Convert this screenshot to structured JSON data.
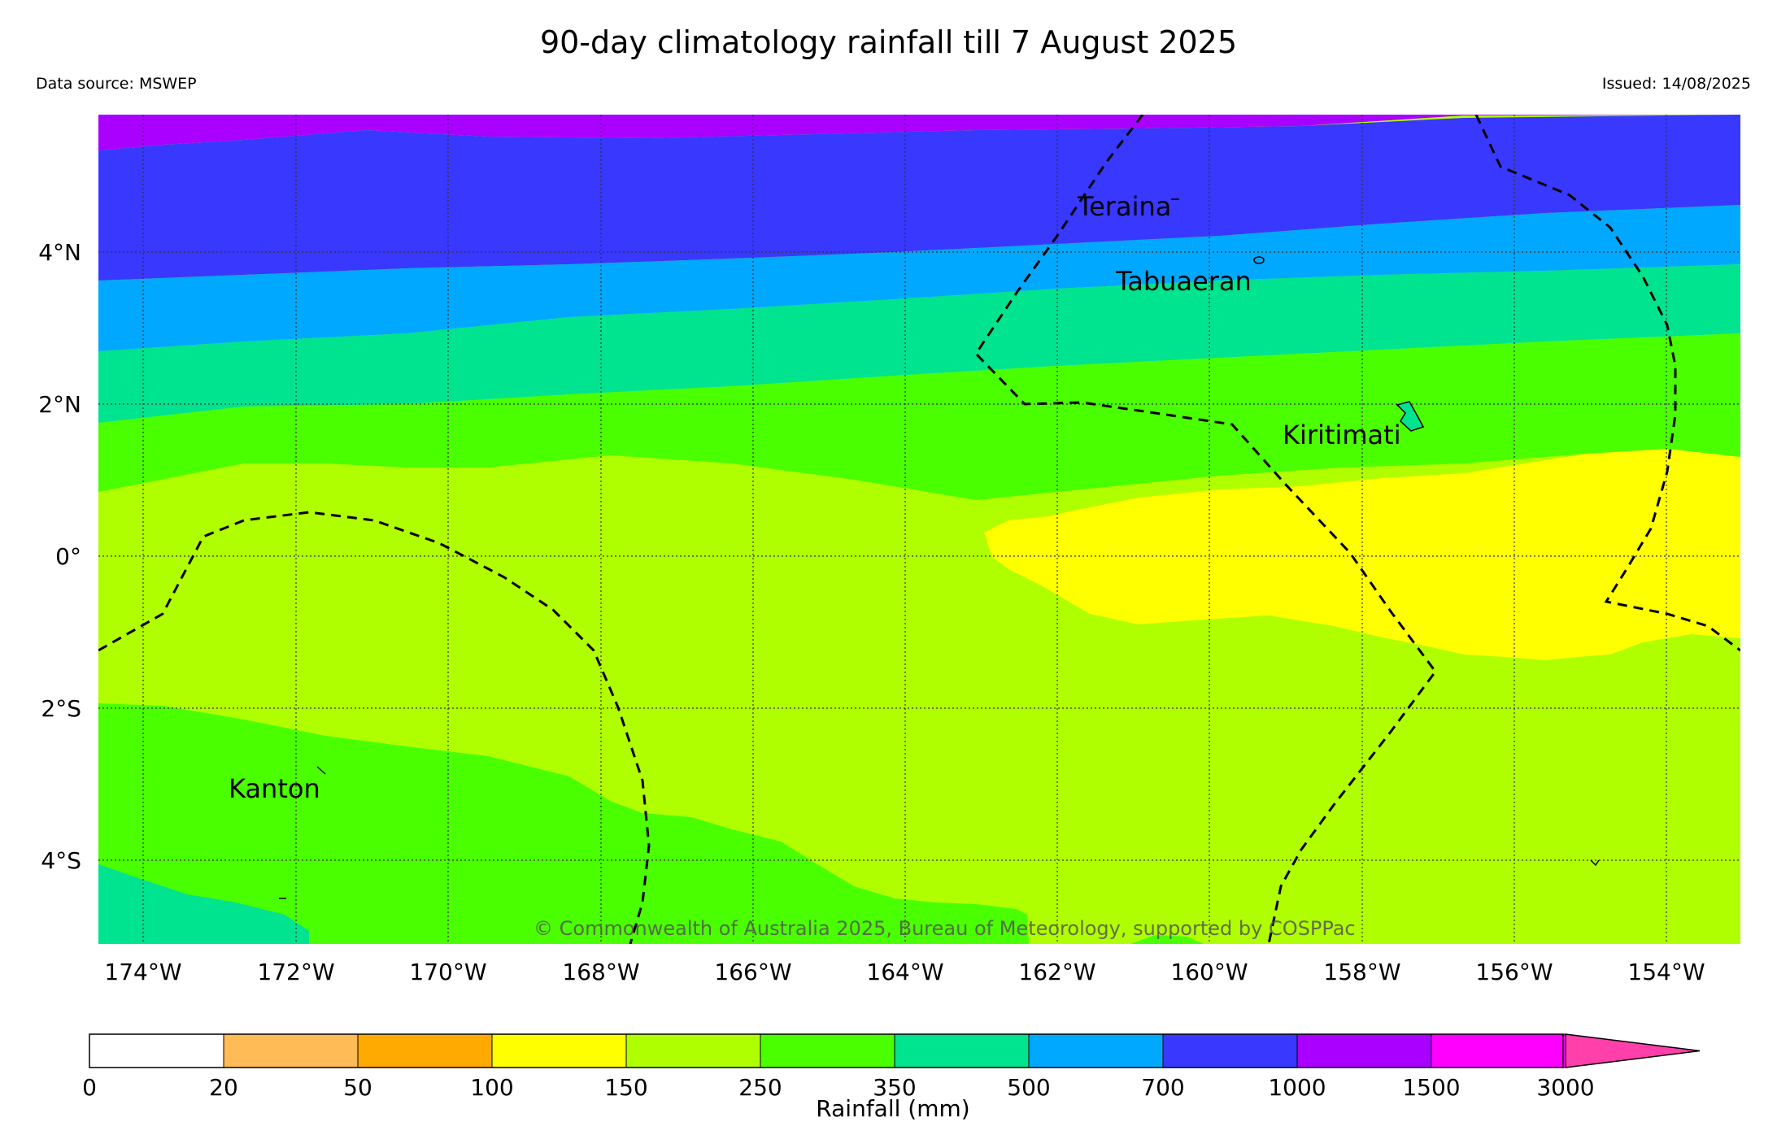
{
  "title": "90-day climatology rainfall till 7 August 2025",
  "data_source": "Data source: MSWEP",
  "issued": "Issued: 14/08/2025",
  "copyright": "© Commonwealth of Australia 2025, Bureau of Meteorology, supported by COSPPac",
  "lat_labels": [
    "4°N",
    "2°N",
    "0°",
    "2°S",
    "4°S"
  ],
  "lon_labels": [
    "174°W",
    "172°W",
    "170°W",
    "168°W",
    "166°W",
    "164°W",
    "162°W",
    "160°W",
    "158°W",
    "156°W",
    "154°W"
  ],
  "places": [
    "Teraina",
    "Tabuaeran",
    "Kiritimati",
    "Kanton"
  ],
  "colorbar": {
    "label": "Rainfall (mm)",
    "ticks": [
      "0",
      "20",
      "50",
      "100",
      "150",
      "250",
      "350",
      "500",
      "700",
      "1000",
      "1500",
      "3000"
    ],
    "colors": [
      "#ffffff",
      "#ffbb55",
      "#ffaa00",
      "#ffff00",
      "#b0ff00",
      "#4aff00",
      "#00e38f",
      "#00a8ff",
      "#3838ff",
      "#aa00ff",
      "#ff00ff",
      "#ff3faa"
    ]
  }
}
